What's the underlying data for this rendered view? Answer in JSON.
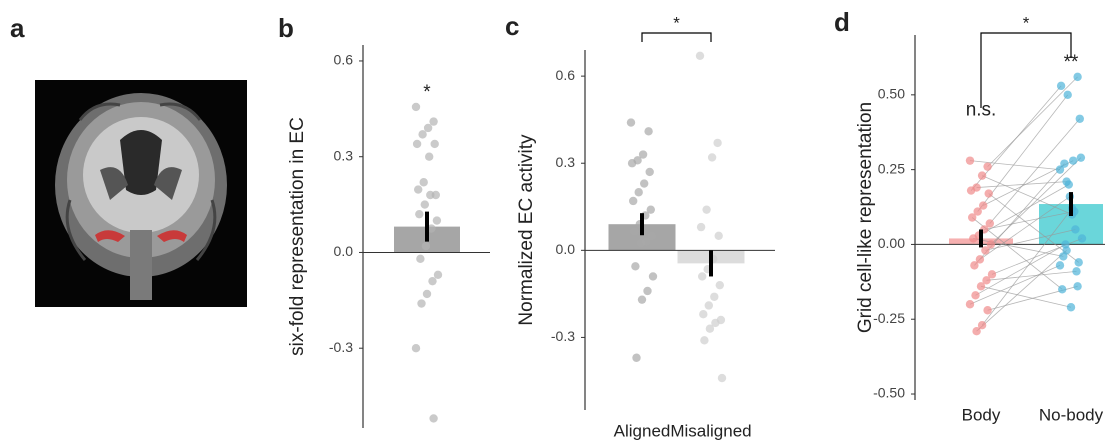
{
  "chart_data": [
    {
      "type": "bar",
      "panel": "a"
    },
    {
      "type": "bar",
      "panel": "b",
      "ylabel": "six-fold representation in EC",
      "values": [
        0.081
      ],
      "errors": [
        0.047
      ],
      "colors": [
        "#a6a6a6"
      ],
      "point_colors": [
        "#b3b3b3"
      ],
      "points": [
        [
          0.456,
          0.41,
          0.39,
          0.37,
          0.34,
          0.34,
          0.3,
          0.22,
          0.197,
          0.18,
          0.18,
          0.15,
          0.12,
          0.1,
          0.075,
          0.02,
          -0.02,
          -0.07,
          -0.09,
          -0.13,
          -0.16,
          -0.3,
          -0.52
        ]
      ],
      "labels": [
        "*"
      ],
      "ylim": [
        -0.55,
        0.65
      ],
      "yticks": [
        0.6,
        0.3,
        {
          "value": 0,
          "label": "0.0"
        },
        -0.3
      ]
    },
    {
      "type": "bar",
      "panel": "c",
      "ylabel": "Normalized EC activity",
      "categories": [
        "Aligned",
        "Misaligned"
      ],
      "values": [
        0.09,
        -0.045
      ],
      "errors": [
        0.038,
        0.045
      ],
      "colors": [
        "#a6a6a6",
        "#dcdcdc"
      ],
      "point_colors": [
        "#a8a8a8",
        "#cfcfcf"
      ],
      "points": [
        [
          0.44,
          0.41,
          0.33,
          0.31,
          0.3,
          0.27,
          0.23,
          0.2,
          0.17,
          0.14,
          0.12,
          0.09,
          0.065,
          0.05,
          0.03,
          0.025,
          -0.055,
          -0.09,
          -0.14,
          -0.17,
          -0.37
        ],
        [
          0.67,
          0.37,
          0.32,
          0.14,
          0.08,
          0.05,
          -0.03,
          -0.065,
          -0.09,
          -0.12,
          -0.16,
          -0.19,
          -0.22,
          -0.24,
          -0.25,
          -0.27,
          -0.31,
          -0.44
        ]
      ],
      "bracket": "*",
      "ylim": [
        -0.55,
        0.69
      ],
      "yticks": [
        0.6,
        0.3,
        {
          "value": 0,
          "label": "0.0"
        },
        -0.3
      ]
    },
    {
      "type": "bar",
      "panel": "d",
      "ylabel": "Grid cell-like representation",
      "categories": [
        "Body",
        "No-body"
      ],
      "values": [
        0.02,
        0.135
      ],
      "errors": [
        0.03,
        0.04
      ],
      "colors": [
        "#f6b0b0",
        "#6ad6da"
      ],
      "point_colors": [
        "#f08a8a",
        "#4fb3d9"
      ],
      "paired": true,
      "points": [
        [
          0.28,
          0.26,
          0.23,
          0.19,
          0.18,
          0.17,
          0.13,
          0.11,
          0.09,
          0.07,
          0.05,
          0.03,
          0.02,
          0.0,
          -0.02,
          -0.05,
          -0.07,
          -0.1,
          -0.12,
          -0.14,
          -0.17,
          -0.2,
          -0.22,
          -0.27,
          -0.29
        ],
        [
          0.25,
          0.56,
          0.1,
          0.21,
          0.53,
          -0.06,
          0.28,
          0.5,
          -0.15,
          0.42,
          0.11,
          0.2,
          -0.04,
          0.29,
          0.05,
          0.16,
          0.27,
          0.02,
          -0.09,
          -0.21,
          0.0,
          -0.07,
          -0.14,
          0.12,
          -0.02
        ]
      ],
      "labels": [
        "n.s.",
        "**"
      ],
      "bracket": "*",
      "ylim": [
        -0.52,
        0.7
      ],
      "yticks": [
        {
          "value": 0.5,
          "label": "0.50"
        },
        0.25,
        {
          "value": 0,
          "label": "0.00"
        },
        -0.25,
        {
          "value": -0.5,
          "label": "-0.50"
        }
      ]
    }
  ]
}
